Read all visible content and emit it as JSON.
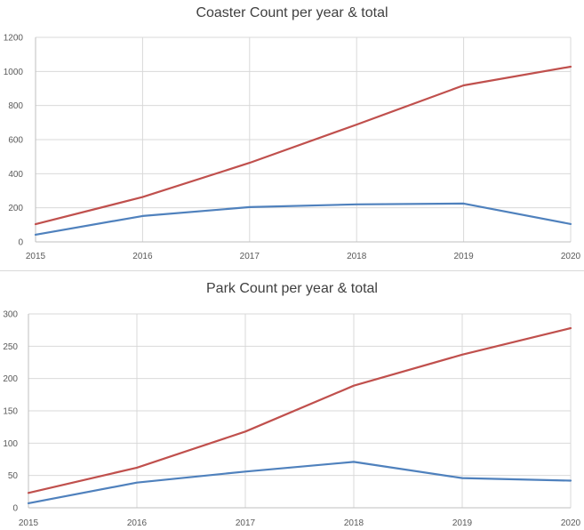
{
  "colors": {
    "red": "#c0504d",
    "blue": "#4f81bd"
  },
  "chart_data": [
    {
      "type": "line",
      "title": "Coaster Count per year & total",
      "x": [
        "2015",
        "2016",
        "2017",
        "2018",
        "2019",
        "2020"
      ],
      "yticks": [
        "0",
        "200",
        "400",
        "600",
        "800",
        "1000",
        "1200"
      ],
      "ylim": [
        0,
        1200
      ],
      "grid": true,
      "legend": "none",
      "series": [
        {
          "color": "#c0504d",
          "values": [
            104,
            263,
            464,
            688,
            918,
            1028
          ]
        },
        {
          "color": "#4f81bd",
          "values": [
            42,
            152,
            204,
            220,
            225,
            105
          ]
        }
      ]
    },
    {
      "type": "line",
      "title": "Park Count per year & total",
      "x": [
        "2015",
        "2016",
        "2017",
        "2018",
        "2019",
        "2020"
      ],
      "yticks": [
        "0",
        "50",
        "100",
        "150",
        "200",
        "250",
        "300"
      ],
      "ylim": [
        0,
        300
      ],
      "grid": true,
      "legend": "none",
      "series": [
        {
          "color": "#c0504d",
          "values": [
            23,
            62,
            118,
            189,
            237,
            278
          ]
        },
        {
          "color": "#4f81bd",
          "values": [
            7,
            39,
            56,
            71,
            46,
            42
          ]
        }
      ]
    }
  ]
}
